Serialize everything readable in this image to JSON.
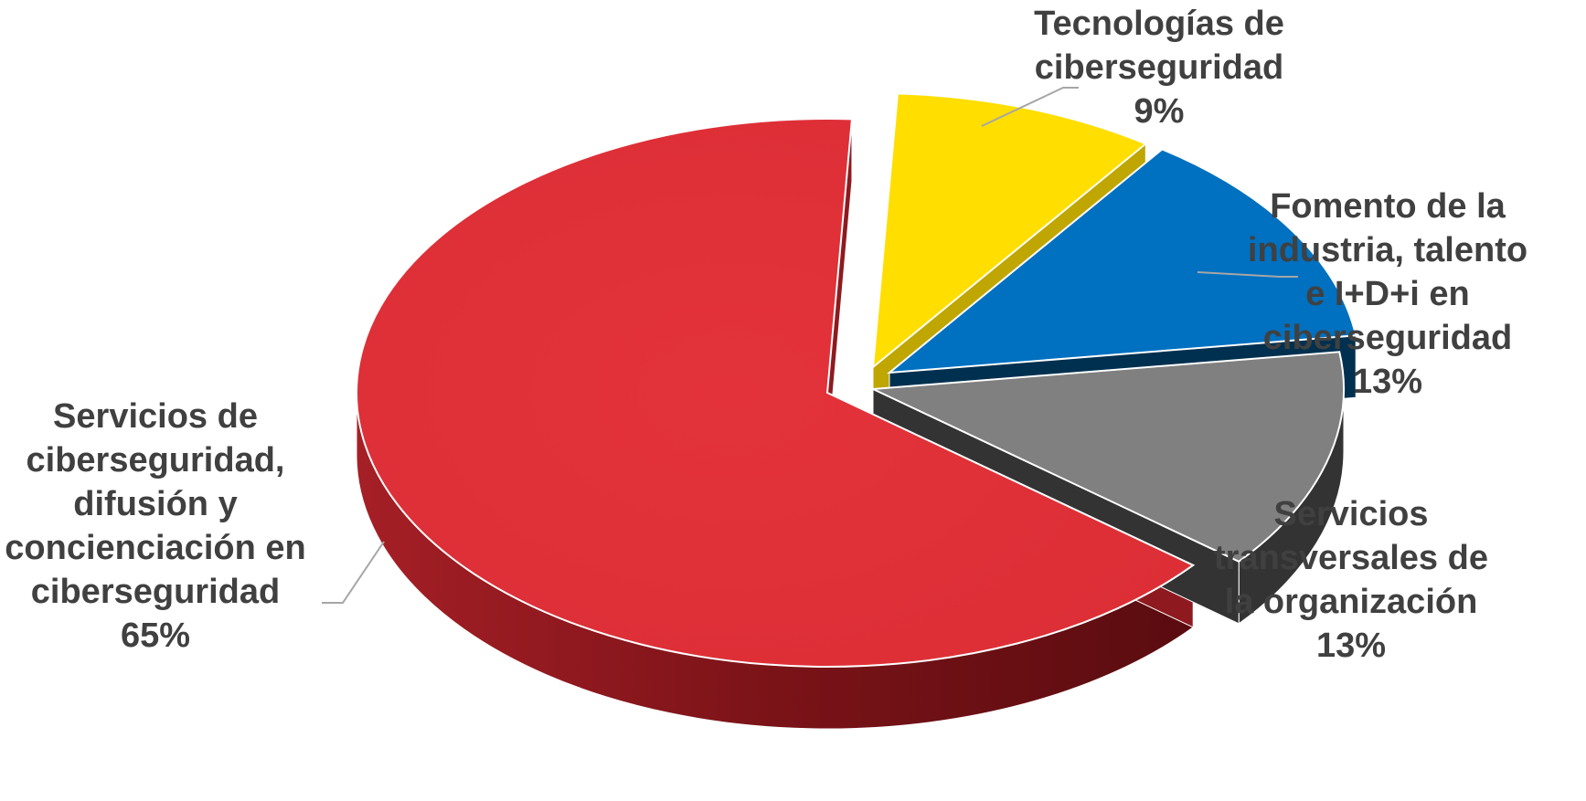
{
  "chart_data": {
    "type": "pie",
    "style": "3d-exploded",
    "title": "",
    "slices": [
      {
        "label_lines": [
          "Tecnologías de",
          "ciberseguridad"
        ],
        "value": 9,
        "value_label": "9%",
        "color": "#ffde00",
        "side_color": "#bfa600"
      },
      {
        "label_lines": [
          "Fomento de la",
          "industria, talento",
          "e I+D+i en",
          "ciberseguridad"
        ],
        "value": 13,
        "value_label": "13%",
        "color": "#0070c0",
        "side_color": "#00304f"
      },
      {
        "label_lines": [
          "Servicios",
          "transversales de",
          "la organización"
        ],
        "value": 13,
        "value_label": "13%",
        "color": "#808080",
        "side_color": "#333333"
      },
      {
        "label_lines": [
          "Servicios de",
          "ciberseguridad,",
          "difusión y",
          "concienciación en",
          "ciberseguridad"
        ],
        "value": 65,
        "value_label": "65%",
        "color": "#e03038",
        "side_color": "#8e1a1f"
      }
    ]
  }
}
